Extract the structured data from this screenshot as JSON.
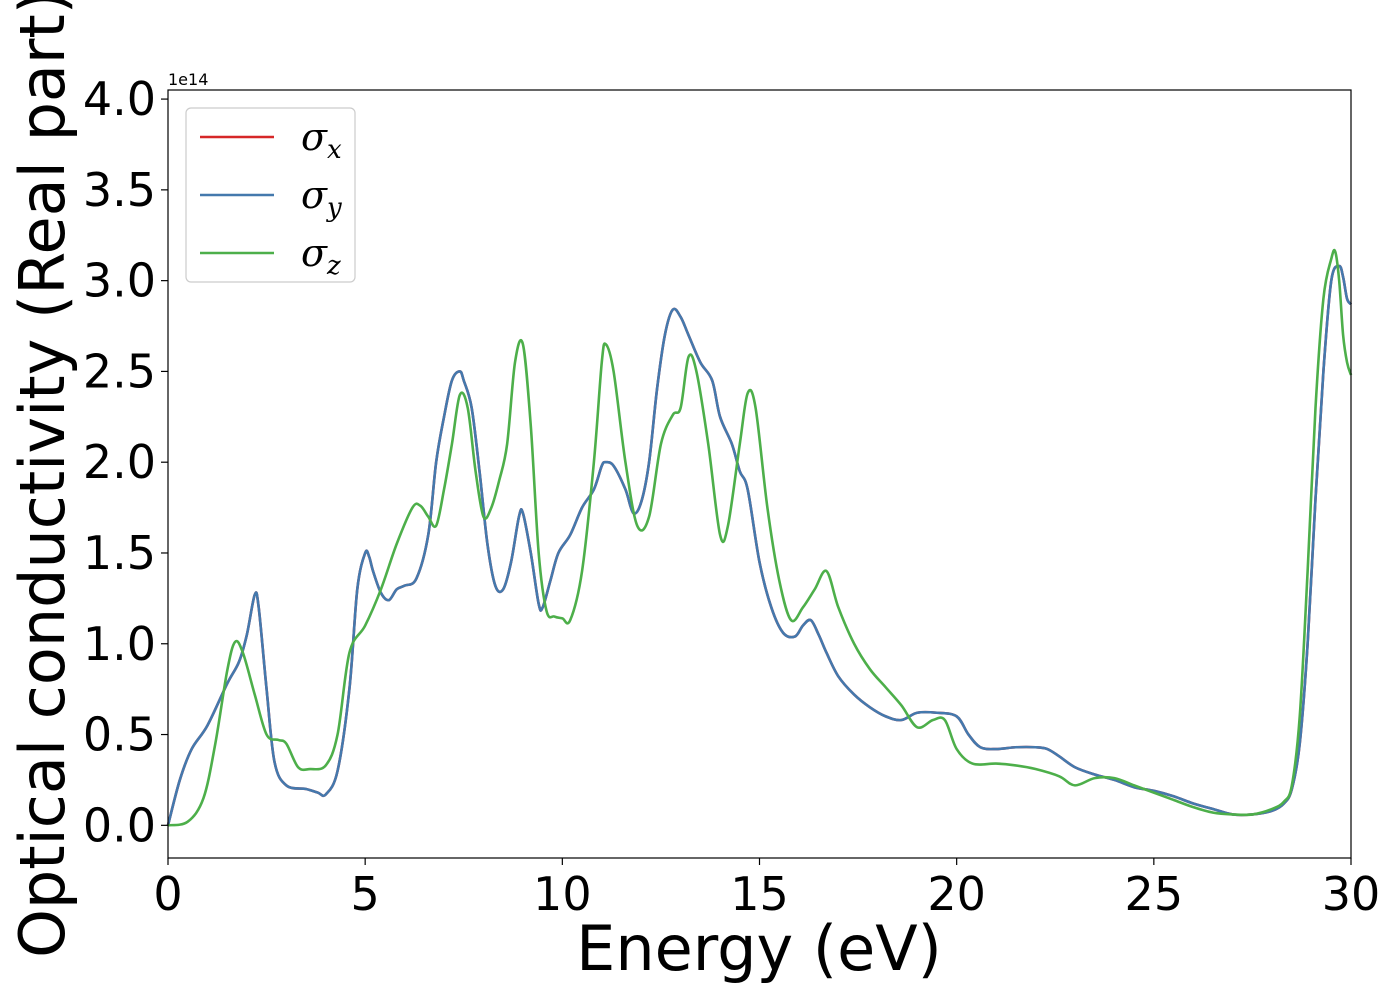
{
  "chart_data": {
    "type": "line",
    "xlabel": "Energy (eV)",
    "ylabel": "Optical conductivity (Real part)",
    "y_offset_text": "1e14",
    "xlim": [
      0,
      30
    ],
    "ylim": [
      -0.18,
      4.05
    ],
    "x_ticks": [
      0,
      5,
      10,
      15,
      20,
      25,
      30
    ],
    "x_tick_labels": [
      "0",
      "5",
      "10",
      "15",
      "20",
      "25",
      "30"
    ],
    "y_ticks": [
      0.0,
      0.5,
      1.0,
      1.5,
      2.0,
      2.5,
      3.0,
      3.5,
      4.0
    ],
    "y_tick_labels": [
      "0.0",
      "0.5",
      "1.0",
      "1.5",
      "2.0",
      "2.5",
      "3.0",
      "3.5",
      "4.0"
    ],
    "grid": false,
    "legend_position": "top-left",
    "series": [
      {
        "name": "σx",
        "symbol": "σ",
        "subscript": "x",
        "color": "#d62728",
        "x": [
          0,
          0.3,
          0.6,
          1.0,
          1.5,
          1.8,
          2.0,
          2.2,
          2.3,
          2.5,
          2.7,
          3.0,
          3.5,
          3.8,
          4.0,
          4.3,
          4.6,
          4.8,
          5.0,
          5.1,
          5.2,
          5.4,
          5.6,
          5.8,
          6.0,
          6.3,
          6.6,
          6.8,
          7.0,
          7.2,
          7.4,
          7.5,
          7.7,
          7.9,
          8.1,
          8.3,
          8.5,
          8.7,
          8.9,
          9.0,
          9.2,
          9.4,
          9.5,
          9.7,
          9.9,
          10.2,
          10.5,
          10.8,
          11.0,
          11.1,
          11.3,
          11.6,
          11.8,
          12.0,
          12.2,
          12.4,
          12.6,
          12.8,
          13.0,
          13.2,
          13.5,
          13.8,
          14.0,
          14.3,
          14.5,
          14.7,
          15.0,
          15.3,
          15.6,
          15.9,
          16.1,
          16.3,
          16.5,
          16.7,
          17.0,
          17.4,
          17.8,
          18.2,
          18.6,
          19.0,
          19.5,
          20.0,
          20.3,
          20.6,
          21.0,
          21.5,
          22.0,
          22.3,
          22.6,
          23.0,
          23.5,
          24.0,
          24.5,
          25.0,
          25.5,
          26.0,
          26.5,
          27.0,
          27.5,
          28.0,
          28.3,
          28.5,
          28.7,
          28.9,
          29.1,
          29.3,
          29.5,
          29.7,
          29.8,
          29.9,
          30.0
        ],
        "y": [
          0.0,
          0.25,
          0.42,
          0.55,
          0.78,
          0.9,
          1.05,
          1.27,
          1.2,
          0.75,
          0.35,
          0.22,
          0.2,
          0.18,
          0.17,
          0.3,
          0.75,
          1.3,
          1.5,
          1.48,
          1.4,
          1.28,
          1.24,
          1.3,
          1.32,
          1.36,
          1.6,
          2.0,
          2.25,
          2.45,
          2.5,
          2.45,
          2.3,
          1.95,
          1.55,
          1.32,
          1.3,
          1.45,
          1.7,
          1.72,
          1.5,
          1.22,
          1.2,
          1.35,
          1.5,
          1.6,
          1.75,
          1.85,
          1.98,
          2.0,
          1.98,
          1.85,
          1.72,
          1.78,
          2.0,
          2.4,
          2.7,
          2.84,
          2.8,
          2.7,
          2.55,
          2.45,
          2.25,
          2.1,
          1.95,
          1.85,
          1.45,
          1.2,
          1.06,
          1.04,
          1.1,
          1.13,
          1.05,
          0.95,
          0.82,
          0.72,
          0.65,
          0.6,
          0.58,
          0.62,
          0.62,
          0.6,
          0.5,
          0.43,
          0.42,
          0.43,
          0.43,
          0.42,
          0.38,
          0.32,
          0.28,
          0.25,
          0.21,
          0.19,
          0.16,
          0.12,
          0.09,
          0.06,
          0.06,
          0.08,
          0.12,
          0.2,
          0.45,
          1.0,
          1.8,
          2.5,
          3.0,
          3.08,
          3.02,
          2.9,
          2.87
        ]
      },
      {
        "name": "σy",
        "symbol": "σ",
        "subscript": "y",
        "color": "#4479ad",
        "x": [
          0,
          0.3,
          0.6,
          1.0,
          1.5,
          1.8,
          2.0,
          2.2,
          2.3,
          2.5,
          2.7,
          3.0,
          3.5,
          3.8,
          4.0,
          4.3,
          4.6,
          4.8,
          5.0,
          5.1,
          5.2,
          5.4,
          5.6,
          5.8,
          6.0,
          6.3,
          6.6,
          6.8,
          7.0,
          7.2,
          7.4,
          7.5,
          7.7,
          7.9,
          8.1,
          8.3,
          8.5,
          8.7,
          8.9,
          9.0,
          9.2,
          9.4,
          9.5,
          9.7,
          9.9,
          10.2,
          10.5,
          10.8,
          11.0,
          11.1,
          11.3,
          11.6,
          11.8,
          12.0,
          12.2,
          12.4,
          12.6,
          12.8,
          13.0,
          13.2,
          13.5,
          13.8,
          14.0,
          14.3,
          14.5,
          14.7,
          15.0,
          15.3,
          15.6,
          15.9,
          16.1,
          16.3,
          16.5,
          16.7,
          17.0,
          17.4,
          17.8,
          18.2,
          18.6,
          19.0,
          19.5,
          20.0,
          20.3,
          20.6,
          21.0,
          21.5,
          22.0,
          22.3,
          22.6,
          23.0,
          23.5,
          24.0,
          24.5,
          25.0,
          25.5,
          26.0,
          26.5,
          27.0,
          27.5,
          28.0,
          28.3,
          28.5,
          28.7,
          28.9,
          29.1,
          29.3,
          29.5,
          29.7,
          29.8,
          29.9,
          30.0
        ],
        "y": [
          0.0,
          0.25,
          0.42,
          0.55,
          0.78,
          0.9,
          1.05,
          1.27,
          1.2,
          0.75,
          0.35,
          0.22,
          0.2,
          0.18,
          0.17,
          0.3,
          0.75,
          1.3,
          1.5,
          1.48,
          1.4,
          1.28,
          1.24,
          1.3,
          1.32,
          1.36,
          1.6,
          2.0,
          2.25,
          2.45,
          2.5,
          2.45,
          2.3,
          1.95,
          1.55,
          1.32,
          1.3,
          1.45,
          1.7,
          1.72,
          1.5,
          1.22,
          1.2,
          1.35,
          1.5,
          1.6,
          1.75,
          1.85,
          1.98,
          2.0,
          1.98,
          1.85,
          1.72,
          1.78,
          2.0,
          2.4,
          2.7,
          2.84,
          2.8,
          2.7,
          2.55,
          2.45,
          2.25,
          2.1,
          1.95,
          1.85,
          1.45,
          1.2,
          1.06,
          1.04,
          1.1,
          1.13,
          1.05,
          0.95,
          0.82,
          0.72,
          0.65,
          0.6,
          0.58,
          0.62,
          0.62,
          0.6,
          0.5,
          0.43,
          0.42,
          0.43,
          0.43,
          0.42,
          0.38,
          0.32,
          0.28,
          0.25,
          0.21,
          0.19,
          0.16,
          0.12,
          0.09,
          0.06,
          0.06,
          0.08,
          0.12,
          0.2,
          0.45,
          1.0,
          1.8,
          2.5,
          3.0,
          3.08,
          3.02,
          2.9,
          2.87
        ]
      },
      {
        "name": "σz",
        "symbol": "σ",
        "subscript": "z",
        "color": "#4daf4a",
        "x": [
          0,
          0.5,
          0.9,
          1.2,
          1.5,
          1.7,
          1.9,
          2.2,
          2.5,
          2.8,
          3.0,
          3.3,
          3.6,
          4.0,
          4.3,
          4.6,
          5.0,
          5.4,
          5.8,
          6.2,
          6.4,
          6.6,
          6.8,
          7.0,
          7.2,
          7.4,
          7.6,
          7.8,
          8.0,
          8.2,
          8.4,
          8.6,
          8.8,
          9.0,
          9.2,
          9.4,
          9.6,
          9.8,
          10.0,
          10.2,
          10.5,
          10.8,
          11.0,
          11.1,
          11.3,
          11.6,
          11.9,
          12.2,
          12.5,
          12.8,
          13.0,
          13.2,
          13.4,
          13.7,
          14.0,
          14.2,
          14.5,
          14.7,
          14.9,
          15.2,
          15.5,
          15.8,
          16.1,
          16.4,
          16.7,
          17.0,
          17.4,
          17.8,
          18.2,
          18.6,
          19.0,
          19.4,
          19.7,
          20.0,
          20.4,
          21.0,
          21.5,
          22.0,
          22.6,
          23.0,
          23.5,
          24.0,
          24.5,
          25.0,
          25.5,
          26.0,
          26.5,
          27.0,
          27.5,
          28.0,
          28.3,
          28.5,
          28.7,
          28.9,
          29.1,
          29.3,
          29.5,
          29.6,
          29.7,
          29.8,
          29.9,
          30.0
        ],
        "y": [
          0.0,
          0.02,
          0.15,
          0.45,
          0.85,
          1.01,
          0.95,
          0.72,
          0.5,
          0.47,
          0.45,
          0.32,
          0.31,
          0.33,
          0.5,
          0.95,
          1.1,
          1.3,
          1.55,
          1.75,
          1.76,
          1.7,
          1.65,
          1.85,
          2.1,
          2.37,
          2.3,
          1.95,
          1.7,
          1.75,
          1.9,
          2.1,
          2.55,
          2.65,
          2.2,
          1.5,
          1.18,
          1.15,
          1.14,
          1.13,
          1.4,
          2.0,
          2.55,
          2.65,
          2.5,
          2.0,
          1.65,
          1.7,
          2.1,
          2.26,
          2.3,
          2.58,
          2.5,
          2.1,
          1.6,
          1.65,
          2.1,
          2.38,
          2.3,
          1.75,
          1.35,
          1.13,
          1.2,
          1.3,
          1.4,
          1.2,
          1.0,
          0.86,
          0.76,
          0.66,
          0.54,
          0.58,
          0.58,
          0.42,
          0.34,
          0.34,
          0.33,
          0.31,
          0.27,
          0.22,
          0.26,
          0.26,
          0.22,
          0.18,
          0.14,
          0.1,
          0.07,
          0.06,
          0.06,
          0.09,
          0.13,
          0.22,
          0.6,
          1.4,
          2.3,
          2.9,
          3.12,
          3.16,
          3.0,
          2.7,
          2.55,
          2.48
        ]
      }
    ]
  }
}
